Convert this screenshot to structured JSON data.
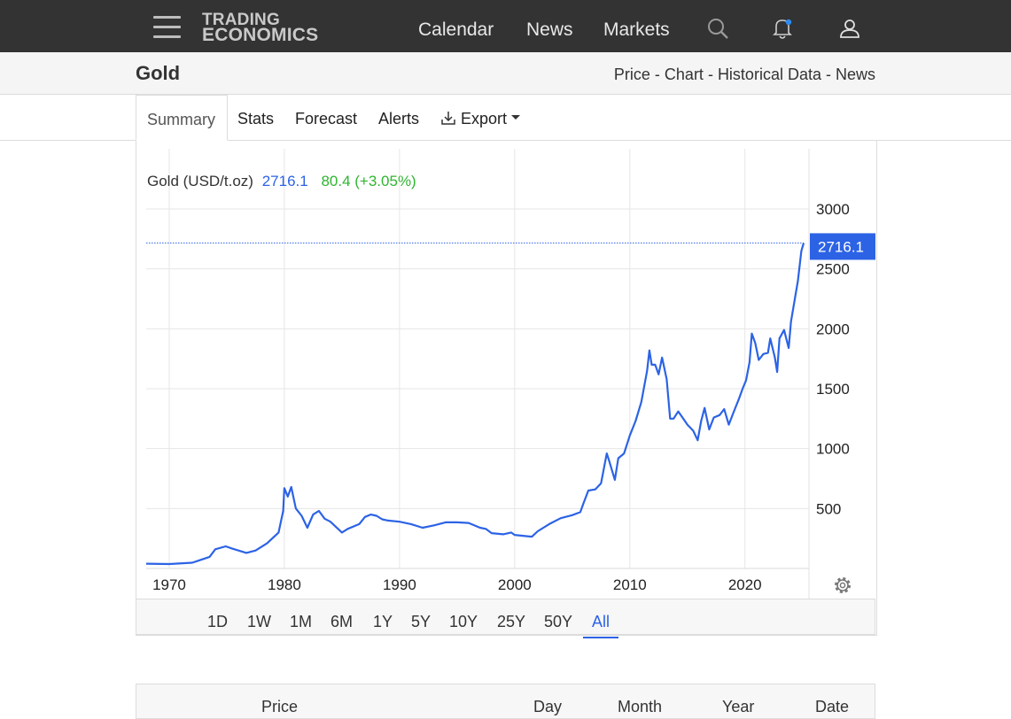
{
  "header": {
    "logo_line1": "TRADING",
    "logo_line2": "ECONOMICS",
    "nav": [
      "Calendar",
      "News",
      "Markets"
    ],
    "icons": [
      "hamburger-menu-icon",
      "search-icon",
      "bell-icon",
      "user-icon"
    ]
  },
  "subheader": {
    "title": "Gold",
    "breadcrumbs": [
      "Price",
      "Chart",
      "Historical Data",
      "News"
    ],
    "separator": "-"
  },
  "tabs": [
    {
      "label": "Summary",
      "active": true
    },
    {
      "label": "Stats"
    },
    {
      "label": "Forecast"
    },
    {
      "label": "Alerts"
    },
    {
      "label": "Export"
    }
  ],
  "chart_data": {
    "type": "line",
    "legend_label": "Gold (USD/t.oz)",
    "last_value": "2716.1",
    "change": "80.4 (+3.05%)",
    "y_ticks": [
      500,
      1000,
      1500,
      2000,
      2500,
      3000
    ],
    "ylim": [
      0,
      3000
    ],
    "x_ticks": [
      1970,
      1980,
      1990,
      2000,
      2010,
      2020
    ],
    "xlim": [
      1968,
      2025.1
    ],
    "colors": {
      "line": "#2c63e5",
      "up": "#2fb52f",
      "label_bg": "#2c63e5",
      "grid": "#e6e6e6"
    },
    "series": [
      {
        "x": [
          1968,
          1970,
          1972,
          1972.5,
          1973.5,
          1974,
          1974.9,
          1975.5,
          1976.7,
          1977.5,
          1978.5,
          1979.5,
          1979.9,
          1980.0,
          1980.3,
          1980.6,
          1981.0,
          1981.5,
          1982.0,
          1982.5,
          1983.0,
          1983.5,
          1984.0,
          1984.5,
          1985.0,
          1985.5,
          1986.5,
          1987.0,
          1987.5,
          1988.0,
          1988.5,
          1989.0,
          1990.0,
          1991.0,
          1992.0,
          1993.0,
          1994.0,
          1995.0,
          1996.0,
          1997.0,
          1997.5,
          1998.0,
          1999.0,
          1999.7,
          2000.0,
          2001.0,
          2001.5,
          2002.0,
          2003.0,
          2004.0,
          2005.0,
          2005.7,
          2006.0,
          2006.4,
          2007.0,
          2007.5,
          2008.0,
          2008.2,
          2008.7,
          2009.0,
          2009.5,
          2010.0,
          2010.5,
          2011.0,
          2011.5,
          2011.7,
          2011.9,
          2012.2,
          2012.5,
          2012.8,
          2013.2,
          2013.5,
          2013.8,
          2014.2,
          2014.5,
          2015.0,
          2015.5,
          2015.9,
          2016.2,
          2016.5,
          2016.9,
          2017.3,
          2017.8,
          2018.2,
          2018.6,
          2019.0,
          2019.5,
          2019.8,
          2020.1,
          2020.4,
          2020.6,
          2020.9,
          2021.2,
          2021.6,
          2022.0,
          2022.2,
          2022.6,
          2022.8,
          2023.0,
          2023.4,
          2023.8,
          2024.0,
          2024.3,
          2024.6,
          2024.9,
          2025.1
        ],
        "values": [
          40,
          37,
          48,
          64,
          97,
          160,
          185,
          165,
          130,
          150,
          210,
          300,
          480,
          670,
          600,
          680,
          500,
          440,
          340,
          450,
          480,
          415,
          390,
          345,
          300,
          330,
          370,
          430,
          450,
          440,
          410,
          400,
          390,
          370,
          340,
          360,
          385,
          385,
          380,
          340,
          330,
          295,
          285,
          300,
          280,
          270,
          265,
          310,
          370,
          420,
          445,
          470,
          550,
          650,
          660,
          710,
          960,
          900,
          740,
          920,
          960,
          1110,
          1230,
          1390,
          1650,
          1820,
          1700,
          1700,
          1620,
          1760,
          1580,
          1250,
          1250,
          1310,
          1270,
          1200,
          1150,
          1070,
          1230,
          1340,
          1160,
          1260,
          1280,
          1330,
          1200,
          1300,
          1420,
          1500,
          1570,
          1720,
          1960,
          1880,
          1740,
          1790,
          1800,
          1920,
          1760,
          1640,
          1920,
          1990,
          1840,
          2060,
          2230,
          2400,
          2650,
          2716.1
        ]
      }
    ]
  },
  "ranges": [
    "1D",
    "1W",
    "1M",
    "6M",
    "1Y",
    "5Y",
    "10Y",
    "25Y",
    "50Y",
    "All"
  ],
  "active_range": "All",
  "table": {
    "columns": [
      "Price",
      "Day",
      "Month",
      "Year",
      "Date"
    ]
  }
}
